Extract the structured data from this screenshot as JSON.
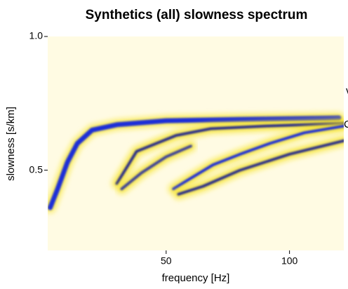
{
  "chart_data": {
    "type": "line",
    "title": "Synthetics (all) slowness spectrum",
    "x_label": "frequency [Hz]",
    "y_label": "slowness [s/km]",
    "xlim": [
      2,
      122
    ],
    "ylim": [
      0.2,
      1.0
    ],
    "xticks": [
      50,
      100
    ],
    "yticks": [
      0.5,
      {
        "value": 1.0,
        "label": "1.0"
      }
    ],
    "background": "#fffbe3",
    "halo_color": "#f5e21a",
    "annotations": [
      "v",
      "C"
    ],
    "series": [
      {
        "color": "#1f2fd8",
        "x": [
          3,
          6,
          10,
          14,
          20,
          30,
          50,
          80,
          120
        ],
        "values": [
          0.36,
          0.43,
          0.53,
          0.6,
          0.65,
          0.67,
          0.685,
          0.69,
          0.695
        ]
      },
      {
        "color": "#2a2f8a",
        "x": [
          30,
          38,
          54,
          68,
          90,
          122
        ],
        "values": [
          0.45,
          0.57,
          0.63,
          0.655,
          0.665,
          0.675
        ]
      },
      {
        "color": "#3a3f9a",
        "x": [
          32,
          40,
          50,
          60
        ],
        "values": [
          0.43,
          0.49,
          0.55,
          0.59
        ]
      },
      {
        "color": "#1f2fd8",
        "x": [
          53,
          60,
          69,
          80,
          92,
          106,
          122
        ],
        "values": [
          0.43,
          0.47,
          0.52,
          0.56,
          0.6,
          0.64,
          0.665
        ]
      },
      {
        "color": "#2a2f8a",
        "x": [
          55,
          65,
          80,
          100,
          122
        ],
        "values": [
          0.41,
          0.44,
          0.5,
          0.56,
          0.61
        ]
      }
    ]
  }
}
